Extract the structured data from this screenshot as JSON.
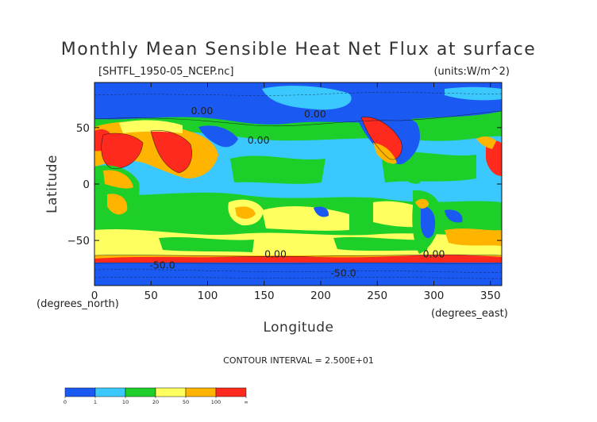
{
  "chart_data": {
    "type": "heatmap",
    "title": "Monthly Mean Sensible Heat Net Flux at surface",
    "file_label": "[SHTFL_1950-05_NCEP.nc]",
    "units_label": "(units:W/m^2)",
    "xlabel": "Longitude",
    "ylabel": "Latitude",
    "x_unit_label": "(degrees_north)",
    "y_unit_label": "(degrees_east)",
    "xlim": [
      0,
      360
    ],
    "ylim": [
      -90,
      90
    ],
    "x_ticks": [
      0,
      50,
      100,
      150,
      200,
      250,
      300,
      350
    ],
    "y_ticks": [
      50,
      0,
      -50
    ],
    "contour_interval_text": "CONTOUR INTERVAL = 2.500E+01",
    "contour_labels": [
      {
        "text": "0.00",
        "x": 95,
        "y": 62
      },
      {
        "text": "0.00",
        "x": 195,
        "y": 59
      },
      {
        "text": "0.00",
        "x": 145,
        "y": 36
      },
      {
        "text": "0.00",
        "x": 160,
        "y": -65
      },
      {
        "text": "0.00",
        "x": 300,
        "y": -65
      },
      {
        "text": "-50.0",
        "x": 60,
        "y": -75
      },
      {
        "text": "-50.0",
        "x": 220,
        "y": -82
      }
    ],
    "colorbar": {
      "colors": [
        "#1a5af2",
        "#3ac8ff",
        "#1ecf2a",
        "#ffff60",
        "#ffb400",
        "#ff2a1e"
      ],
      "edge_labels": [
        "0",
        "1",
        "10",
        "20",
        "50",
        "100",
        "∞"
      ]
    },
    "grid": false
  }
}
